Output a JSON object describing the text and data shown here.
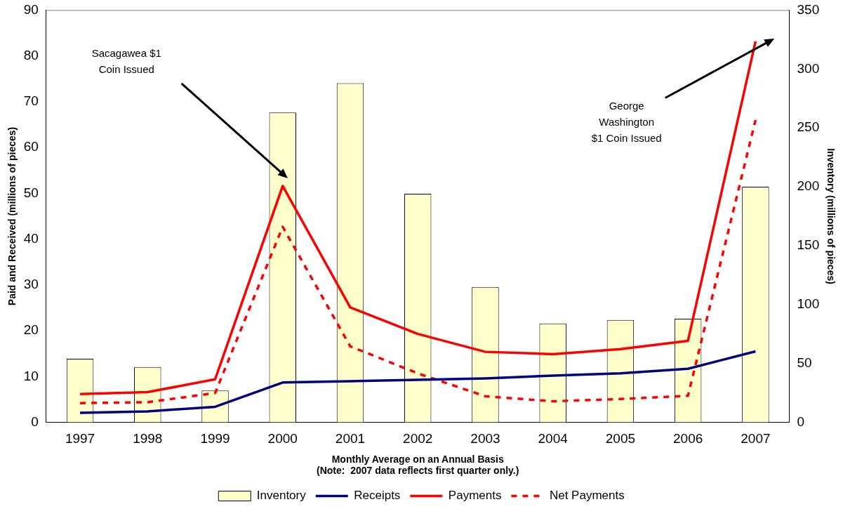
{
  "chart_data": {
    "type": "bar",
    "categories": [
      "1997",
      "1998",
      "1999",
      "2000",
      "2001",
      "2002",
      "2003",
      "2004",
      "2005",
      "2006",
      "2007"
    ],
    "xlabel": "Monthly Average on an Annual Basis",
    "ylabel": "Paid and Received (millions of pieces)",
    "y2label": "Inventory (millions of pieces)",
    "series": [
      {
        "name": "Inventory",
        "axis": "y2",
        "color": "#ffffcc",
        "values": [
          54,
          47,
          27,
          263,
          288,
          194,
          115,
          84,
          87,
          88,
          200
        ]
      },
      {
        "name": "Receipts",
        "type": "line",
        "color": "#000080",
        "values": [
          2.1,
          2.4,
          3.4,
          8.7,
          9.0,
          9.3,
          9.6,
          10.2,
          10.7,
          11.7,
          15.5
        ]
      },
      {
        "name": "Payments",
        "type": "line",
        "color": "#ff0000",
        "values": [
          6.2,
          6.6,
          9.4,
          51.6,
          25.1,
          19.3,
          15.4,
          14.9,
          16.0,
          17.8,
          83.2
        ]
      },
      {
        "name": "Net Payments",
        "type": "line",
        "color": "#ff0000",
        "line_style": "dashed",
        "values": [
          4.2,
          4.4,
          6.4,
          42.7,
          16.6,
          10.7,
          5.7,
          4.6,
          5.1,
          5.8,
          66.0
        ]
      }
    ],
    "ylim": [
      0,
      90
    ],
    "yticks": [
      0,
      10,
      20,
      30,
      40,
      50,
      60,
      70,
      80,
      90
    ],
    "y2lim": [
      0,
      350
    ],
    "y2ticks": [
      0,
      50,
      100,
      150,
      200,
      250,
      300,
      350
    ],
    "grid": false,
    "legend": "bottom",
    "marker": "none",
    "annotations": [
      "Sacagawea $1\nCoin Issued",
      "George\nWashington\n$1 Coin Issued",
      "(Note:  2007 data reflects first quarter only.)"
    ]
  }
}
